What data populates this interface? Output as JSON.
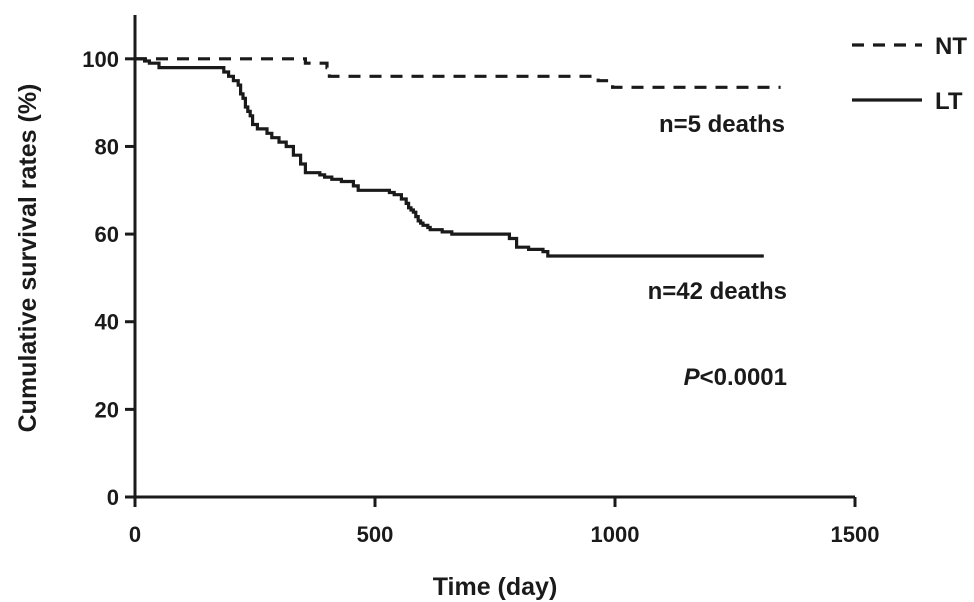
{
  "chart_data": {
    "type": "line",
    "xlabel": "Time (day)",
    "ylabel": "Cumulative survival rates (%)",
    "xlim": [
      0,
      1500
    ],
    "ylim": [
      0,
      110
    ],
    "x_ticks": [
      "0",
      "500",
      "1000",
      "1500"
    ],
    "y_ticks": [
      "0",
      "20",
      "40",
      "60",
      "80",
      "100"
    ],
    "legend_position": "top-right",
    "series": [
      {
        "name": "NT",
        "style": "dashed",
        "color": "#1a1a1a",
        "x": [
          0,
          25,
          55,
          350,
          355,
          390,
          400,
          405,
          960,
          965,
          990,
          995,
          1345
        ],
        "y": [
          100,
          100,
          100,
          100,
          99,
          99,
          98,
          96,
          96,
          95,
          95,
          93.5,
          93.5
        ]
      },
      {
        "name": "LT",
        "style": "solid",
        "color": "#1a1a1a",
        "x": [
          0,
          10,
          20,
          30,
          50,
          175,
          185,
          195,
          205,
          215,
          220,
          225,
          230,
          235,
          240,
          245,
          255,
          275,
          285,
          300,
          315,
          330,
          345,
          355,
          375,
          385,
          395,
          410,
          430,
          455,
          465,
          490,
          530,
          540,
          555,
          565,
          570,
          575,
          580,
          585,
          590,
          595,
          600,
          610,
          615,
          640,
          660,
          710,
          780,
          795,
          820,
          850,
          860,
          1310
        ],
        "y": [
          100,
          100,
          99.5,
          99,
          98,
          98,
          97,
          96,
          95,
          94,
          92,
          91,
          89,
          88,
          87,
          85,
          84,
          83,
          82,
          81,
          80,
          78,
          76,
          74,
          74,
          73.5,
          73,
          72.5,
          72,
          71,
          70,
          70,
          69.5,
          69,
          68,
          67,
          66,
          65.5,
          65,
          64,
          63,
          62.5,
          62,
          61.5,
          61,
          60.5,
          60,
          60,
          59,
          57,
          56.5,
          56,
          55,
          55
        ]
      }
    ],
    "annotations": [
      {
        "series": "NT",
        "text": "n=5 deaths"
      },
      {
        "series": "LT",
        "text": "n=42 deaths"
      },
      {
        "text_prefix": "P",
        "text_suffix": "<0.0001"
      }
    ]
  }
}
